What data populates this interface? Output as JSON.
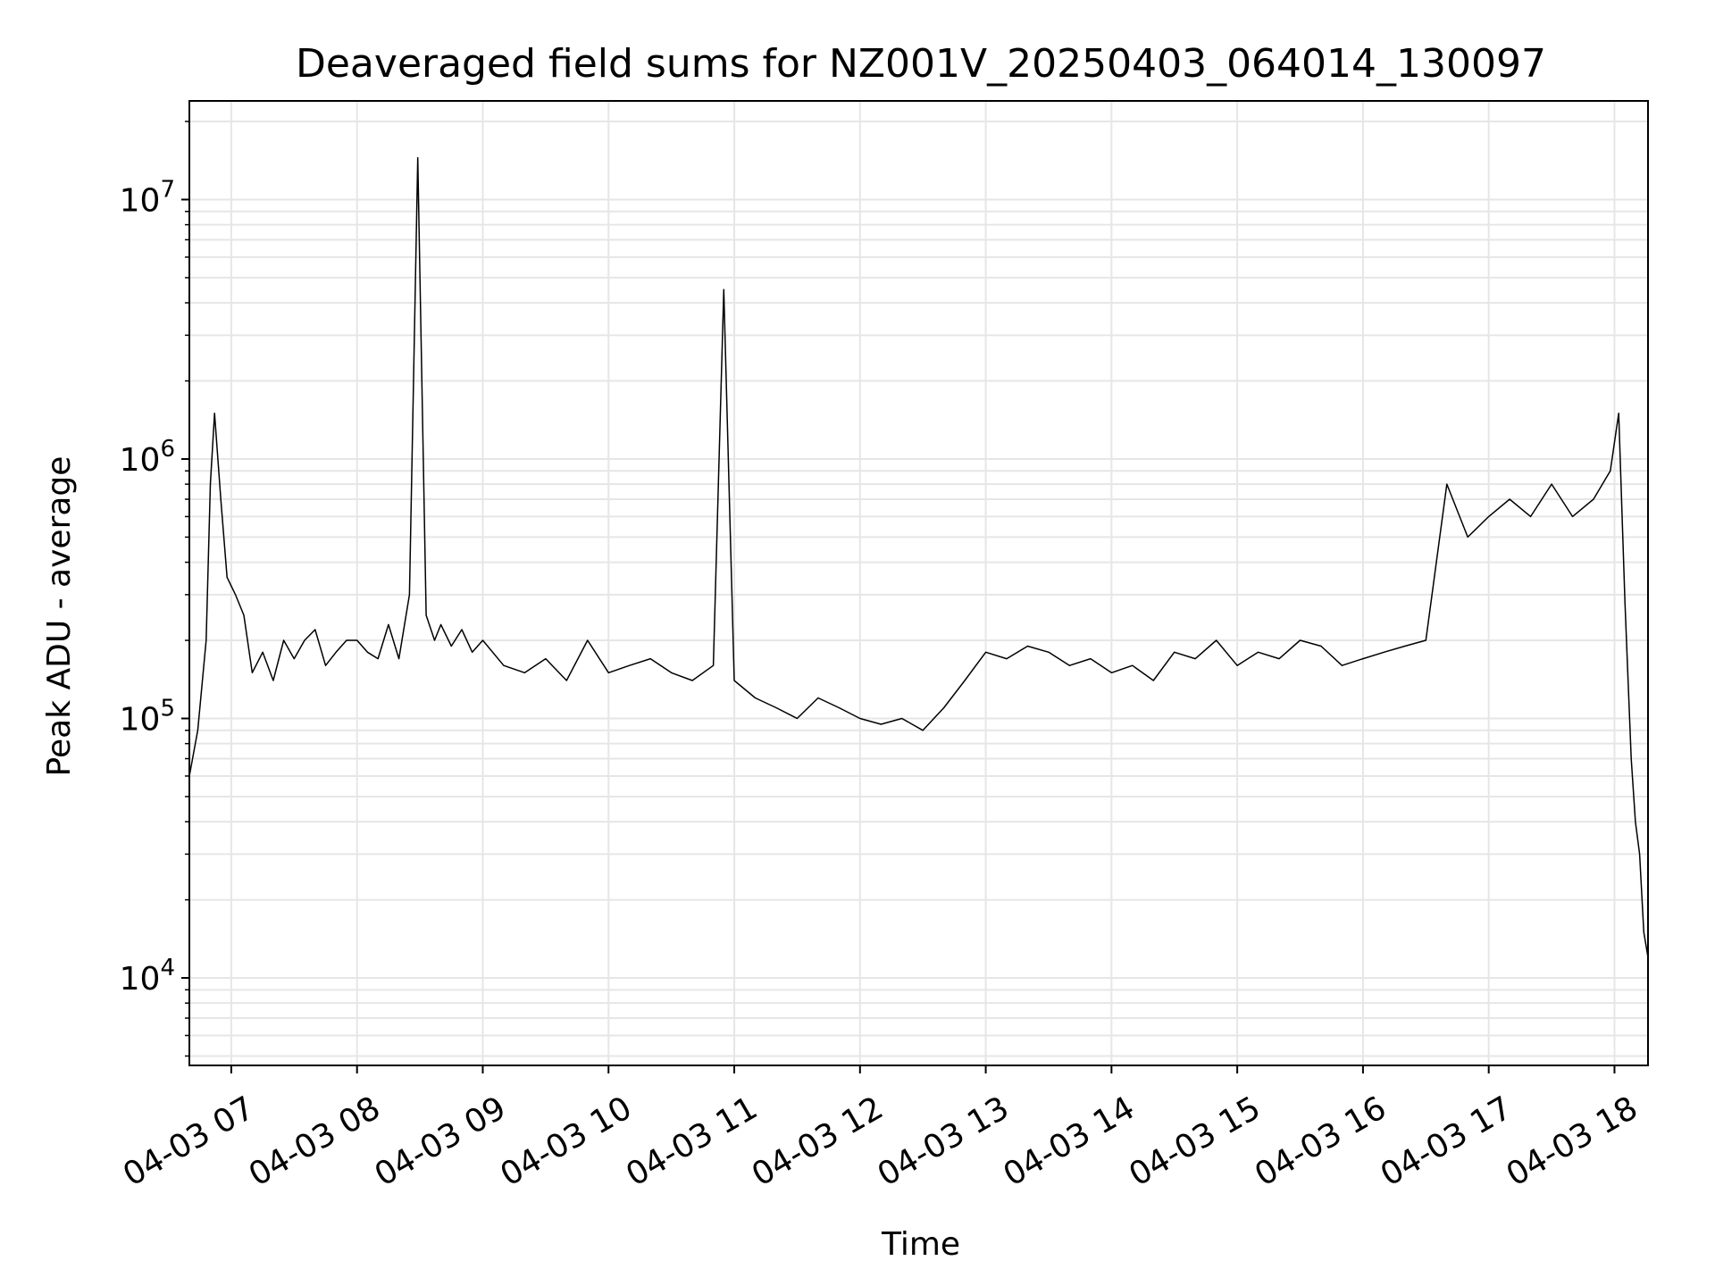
{
  "chart_data": {
    "type": "line",
    "title": "Deaveraged field sums for NZ001V_20250403_064014_130097",
    "xlabel": "Time",
    "ylabel": "Peak ADU - average",
    "yscale": "log",
    "grid": "major and minor",
    "legend": "none",
    "line_color": "#000000",
    "grid_color": "#e6e6e6",
    "xlim": [
      "2025-04-03 06:40",
      "2025-04-03 18:16"
    ],
    "ylim": [
      4600,
      24000000
    ],
    "x_ticks": [
      {
        "value": "2025-04-03 07:00",
        "label": "04-03 07"
      },
      {
        "value": "2025-04-03 08:00",
        "label": "04-03 08"
      },
      {
        "value": "2025-04-03 09:00",
        "label": "04-03 09"
      },
      {
        "value": "2025-04-03 10:00",
        "label": "04-03 10"
      },
      {
        "value": "2025-04-03 11:00",
        "label": "04-03 11"
      },
      {
        "value": "2025-04-03 12:00",
        "label": "04-03 12"
      },
      {
        "value": "2025-04-03 13:00",
        "label": "04-03 13"
      },
      {
        "value": "2025-04-03 14:00",
        "label": "04-03 14"
      },
      {
        "value": "2025-04-03 15:00",
        "label": "04-03 15"
      },
      {
        "value": "2025-04-03 16:00",
        "label": "04-03 16"
      },
      {
        "value": "2025-04-03 17:00",
        "label": "04-03 17"
      },
      {
        "value": "2025-04-03 18:00",
        "label": "04-03 18"
      }
    ],
    "y_ticks": [
      {
        "value": 10000,
        "base": "10",
        "exp": "4"
      },
      {
        "value": 100000,
        "base": "10",
        "exp": "5"
      },
      {
        "value": 1000000,
        "base": "10",
        "exp": "6"
      },
      {
        "value": 10000000,
        "base": "10",
        "exp": "7"
      }
    ],
    "series": [
      {
        "x": [
          "2025-04-03 06:40",
          "2025-04-03 06:44",
          "2025-04-03 06:48",
          "2025-04-03 06:50",
          "2025-04-03 06:52",
          "2025-04-03 06:55",
          "2025-04-03 06:58",
          "2025-04-03 07:02",
          "2025-04-03 07:06",
          "2025-04-03 07:10",
          "2025-04-03 07:15",
          "2025-04-03 07:20",
          "2025-04-03 07:25",
          "2025-04-03 07:30",
          "2025-04-03 07:35",
          "2025-04-03 07:40",
          "2025-04-03 07:45",
          "2025-04-03 07:50",
          "2025-04-03 07:55",
          "2025-04-03 08:00",
          "2025-04-03 08:05",
          "2025-04-03 08:10",
          "2025-04-03 08:15",
          "2025-04-03 08:20",
          "2025-04-03 08:25",
          "2025-04-03 08:29",
          "2025-04-03 08:33",
          "2025-04-03 08:37",
          "2025-04-03 08:40",
          "2025-04-03 08:45",
          "2025-04-03 08:50",
          "2025-04-03 08:55",
          "2025-04-03 09:00",
          "2025-04-03 09:10",
          "2025-04-03 09:20",
          "2025-04-03 09:30",
          "2025-04-03 09:40",
          "2025-04-03 09:50",
          "2025-04-03 10:00",
          "2025-04-03 10:10",
          "2025-04-03 10:20",
          "2025-04-03 10:30",
          "2025-04-03 10:40",
          "2025-04-03 10:50",
          "2025-04-03 10:55",
          "2025-04-03 11:00",
          "2025-04-03 11:10",
          "2025-04-03 11:20",
          "2025-04-03 11:30",
          "2025-04-03 11:40",
          "2025-04-03 11:50",
          "2025-04-03 12:00",
          "2025-04-03 12:10",
          "2025-04-03 12:20",
          "2025-04-03 12:30",
          "2025-04-03 12:40",
          "2025-04-03 12:50",
          "2025-04-03 13:00",
          "2025-04-03 13:10",
          "2025-04-03 13:20",
          "2025-04-03 13:30",
          "2025-04-03 13:40",
          "2025-04-03 13:50",
          "2025-04-03 14:00",
          "2025-04-03 14:10",
          "2025-04-03 14:20",
          "2025-04-03 14:30",
          "2025-04-03 14:40",
          "2025-04-03 14:50",
          "2025-04-03 15:00",
          "2025-04-03 15:10",
          "2025-04-03 15:20",
          "2025-04-03 15:30",
          "2025-04-03 15:40",
          "2025-04-03 15:50",
          "2025-04-03 16:00",
          "2025-04-03 16:10",
          "2025-04-03 16:20",
          "2025-04-03 16:30",
          "2025-04-03 16:40",
          "2025-04-03 16:50",
          "2025-04-03 17:00",
          "2025-04-03 17:10",
          "2025-04-03 17:20",
          "2025-04-03 17:30",
          "2025-04-03 17:40",
          "2025-04-03 17:50",
          "2025-04-03 17:58",
          "2025-04-03 18:02",
          "2025-04-03 18:05",
          "2025-04-03 18:08",
          "2025-04-03 18:10",
          "2025-04-03 18:12",
          "2025-04-03 18:14",
          "2025-04-03 18:16"
        ],
        "y": [
          60000,
          90000,
          200000,
          800000,
          1500000,
          700000,
          350000,
          300000,
          250000,
          150000,
          180000,
          140000,
          200000,
          170000,
          200000,
          220000,
          160000,
          180000,
          200000,
          200000,
          180000,
          170000,
          230000,
          170000,
          300000,
          14500000,
          250000,
          200000,
          230000,
          190000,
          220000,
          180000,
          200000,
          160000,
          150000,
          170000,
          140000,
          200000,
          150000,
          160000,
          170000,
          150000,
          140000,
          160000,
          4500000,
          140000,
          120000,
          110000,
          100000,
          120000,
          110000,
          100000,
          95000,
          100000,
          90000,
          110000,
          140000,
          180000,
          170000,
          190000,
          180000,
          160000,
          170000,
          150000,
          160000,
          140000,
          180000,
          170000,
          200000,
          160000,
          180000,
          170000,
          200000,
          190000,
          160000,
          170000,
          180000,
          190000,
          200000,
          800000,
          500000,
          600000,
          700000,
          600000,
          800000,
          600000,
          700000,
          900000,
          1500000,
          280000,
          70000,
          40000,
          30000,
          15000,
          12000
        ]
      }
    ]
  }
}
